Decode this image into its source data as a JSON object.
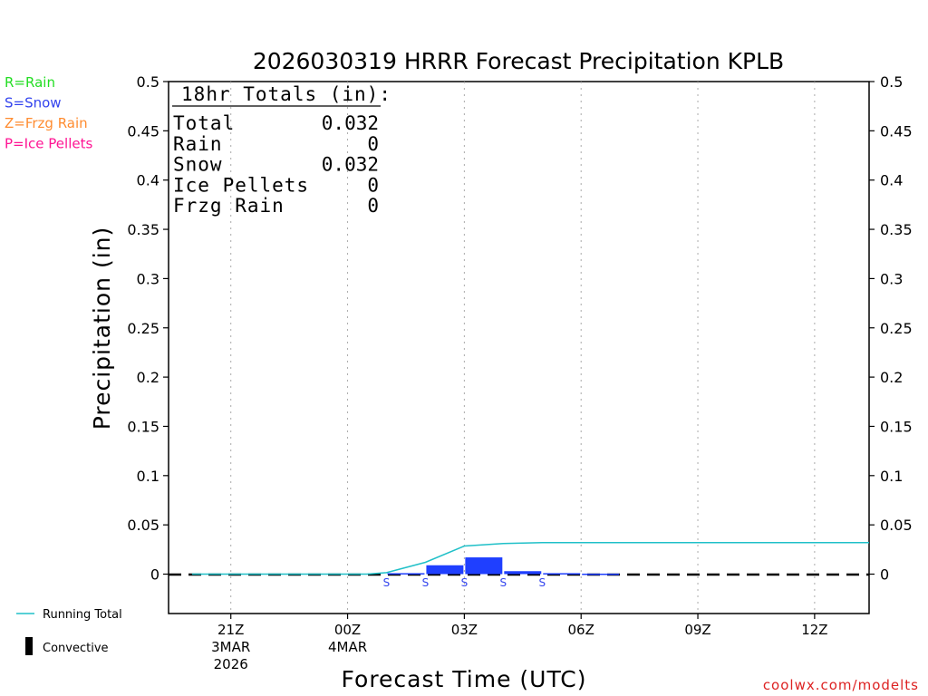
{
  "chart_data": {
    "type": "bar",
    "title": "2026030319 HRRR Forecast Precipitation KPLB",
    "xlabel": "Forecast Time (UTC)",
    "ylabel": "Precipitation (in)",
    "ylim": [
      -0.04,
      0.5
    ],
    "xlim_hours": [
      -3.6,
      14.4
    ],
    "grid": "vertical-dotted",
    "yticks": [
      "0",
      "0.05",
      "0.1",
      "0.15",
      "0.2",
      "0.25",
      "0.3",
      "0.35",
      "0.4",
      "0.45",
      "0.5"
    ],
    "ytick_values": [
      0,
      0.05,
      0.1,
      0.15,
      0.2,
      0.25,
      0.3,
      0.35,
      0.4,
      0.45,
      0.5
    ],
    "xticks": [
      {
        "hour": -2,
        "label": "21Z",
        "date": "3MAR",
        "year": "2026"
      },
      {
        "hour": 1,
        "label": "00Z",
        "date": "4MAR",
        "year": ""
      },
      {
        "hour": 4,
        "label": "03Z",
        "date": "",
        "year": ""
      },
      {
        "hour": 7,
        "label": "06Z",
        "date": "",
        "year": ""
      },
      {
        "hour": 10,
        "label": "09Z",
        "date": "",
        "year": ""
      },
      {
        "hour": 13,
        "label": "12Z",
        "date": "",
        "year": ""
      }
    ],
    "hourly_precip": {
      "hours": [
        -3,
        -2,
        -1,
        0,
        1,
        2,
        3,
        4,
        5,
        6,
        7,
        8,
        9,
        10,
        11,
        12,
        13,
        14
      ],
      "values": [
        0,
        0,
        0,
        0,
        0,
        0.001,
        0.009,
        0.017,
        0.003,
        0.001,
        0.0005,
        0,
        0,
        0,
        0,
        0,
        0,
        0
      ]
    },
    "running_total": {
      "name": "Running Total",
      "hours": [
        -3,
        -2,
        -1,
        0,
        1,
        1.5,
        2,
        3,
        4,
        5,
        6,
        7,
        8,
        9,
        10,
        11,
        12,
        13,
        14,
        14.4
      ],
      "values": [
        0,
        0,
        0,
        0,
        0,
        0,
        0.0015,
        0.012,
        0.0285,
        0.031,
        0.032,
        0.032,
        0.032,
        0.032,
        0.032,
        0.032,
        0.032,
        0.032,
        0.032,
        0.032
      ]
    },
    "precip_type_markers": [
      {
        "hour": 2,
        "type": "S"
      },
      {
        "hour": 3,
        "type": "S"
      },
      {
        "hour": 4,
        "type": "S"
      },
      {
        "hour": 5,
        "type": "S"
      },
      {
        "hour": 6,
        "type": "S"
      }
    ],
    "colors": {
      "snow_bar": "#1f3fff",
      "running_total": "#20c0c8",
      "rain": "#22dd22",
      "snow": "#3344ee",
      "frzg_rain": "#ff8c30",
      "ice_pellets": "#ff1493",
      "credit": "#dd2222"
    },
    "totals_box": {
      "header": "18hr Totals (in):",
      "rows": [
        {
          "label": "Total",
          "value": "0.032"
        },
        {
          "label": "Rain",
          "value": "0"
        },
        {
          "label": "Snow",
          "value": "0.032"
        },
        {
          "label": "Ice Pellets",
          "value": "0"
        },
        {
          "label": "Frzg Rain",
          "value": "0"
        }
      ]
    },
    "type_legend": [
      {
        "text": "R=Rain",
        "color": "#22dd22"
      },
      {
        "text": "S=Snow",
        "color": "#3344ee"
      },
      {
        "text": "Z=Frzg Rain",
        "color": "#ff8c30"
      },
      {
        "text": "P=Ice Pellets",
        "color": "#ff1493"
      }
    ],
    "series_legend": {
      "running_total": "Running Total",
      "convective": "Convective"
    },
    "credit": "coolwx.com/modelts"
  }
}
